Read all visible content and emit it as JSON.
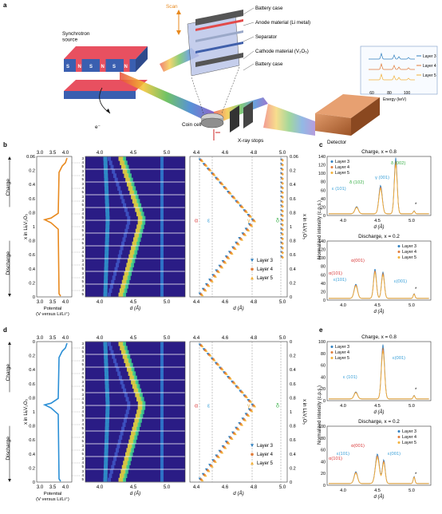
{
  "panel_labels": {
    "a": "a",
    "b": "b",
    "c": "c",
    "d": "d",
    "e": "e"
  },
  "panel_a": {
    "synchrotron_label": "Synchrotron\nsource",
    "scan_label": "Scan",
    "electron_label": "e⁻",
    "coin_cell_label": "Coin cell",
    "xray_stops_label": "X-ray stops",
    "detector_label": "Detector",
    "magnet_letters": [
      "S",
      "N",
      "S",
      "N",
      "S",
      "N"
    ],
    "cell_parts": [
      "Battery case",
      "Anode material (Li metal)",
      "Separator",
      "Cathode material (V₂O₅)",
      "Battery case"
    ],
    "inset": {
      "layers": [
        "Layer 3",
        "Layer 4",
        "Layer 5"
      ],
      "ticks": [
        "60",
        "80",
        "100"
      ],
      "xlabel": "Energy (keV)"
    }
  },
  "colors": {
    "layer3": "#2f7fbf",
    "layer4": "#e07b39",
    "layer5": "#f2b13a",
    "charge_curve": "#e8891e",
    "charge_curve_d": "#2b8fd6",
    "alpha": "#d93a3a",
    "epsilon": "#3aa0d8",
    "gamma": "#e8b04a",
    "delta": "#3bb14a"
  },
  "rows": [
    {
      "id": "b",
      "potential_ticks": [
        "3.0",
        "3.5",
        "4.0"
      ],
      "potential_label": "Potential\n(V versus Li/Li⁺)",
      "xli_ticks": [
        "0.06",
        "0.2",
        "0.4",
        "0.6",
        "0.8",
        "1",
        "0.8",
        "0.6",
        "0.4",
        "0.2",
        "0"
      ],
      "xli_label": "x in LiₓV₂O₅",
      "charge_label": "Charge",
      "discharge_label": "Discharge",
      "layer_numbers": [
        "3",
        "4",
        "5"
      ],
      "d_ticks": [
        "4.0",
        "4.5",
        "5.0"
      ],
      "d_label": "d (Å)",
      "fit_d_ticks": [
        "4.4",
        "4.6",
        "4.8",
        "5.0"
      ],
      "fit_right_ticks": [
        "0.06",
        "0.2",
        "0.4",
        "0.6",
        "0.8",
        "1",
        "0.8",
        "0.6",
        "0.4",
        "0.2",
        "0"
      ],
      "phase_labels": [
        "α",
        "ε",
        "γ",
        "δ"
      ],
      "legend": [
        "Layer 3",
        "Layer 4",
        "Layer 5"
      ]
    },
    {
      "id": "d",
      "potential_ticks": [
        "3.0",
        "3.5",
        "4.0"
      ],
      "potential_label": "Potential\n(V versus Li/Li⁺)",
      "xli_ticks": [
        "0",
        "0.2",
        "0.4",
        "0.6",
        "0.8",
        "1",
        "0.8",
        "0.6",
        "0.4",
        "0.2",
        "0"
      ],
      "xli_label": "x in LiₓV₂O₅",
      "charge_label": "Charge",
      "discharge_label": "Discharge",
      "layer_numbers": [
        "3",
        "4",
        "5"
      ],
      "d_ticks": [
        "4.0",
        "4.5",
        "5.0"
      ],
      "d_label": "d (Å)",
      "fit_d_ticks": [
        "4.4",
        "4.6",
        "4.8",
        "5.0"
      ],
      "fit_right_ticks": [
        "0",
        "0.2",
        "0.4",
        "0.6",
        "0.8",
        "1",
        "0.8",
        "0.6",
        "0.4",
        "0.2",
        "0"
      ],
      "phase_labels": [
        "α",
        "ε",
        "γ",
        "δ"
      ],
      "legend": [
        "Layer 3",
        "Layer 4",
        "Layer 5"
      ]
    }
  ],
  "spectra": [
    {
      "id": "c",
      "top_title": "Charge, x = 0.8",
      "bottom_title": "Discharge, x = 0.2",
      "ylabel": "Normalized intensity (c.p.s.)",
      "xlabel": "d (Å)",
      "x_ticks": [
        "4.0",
        "4.5",
        "5.0"
      ],
      "top_y_ticks": [
        "0",
        "20",
        "40",
        "60",
        "80",
        "100",
        "120",
        "140"
      ],
      "bottom_y_ticks": [
        "0",
        "20",
        "40",
        "60",
        "80",
        "100",
        "120",
        "140"
      ],
      "legend": [
        "Layer 3",
        "Layer 4",
        "Layer 5"
      ],
      "top_peaks": [
        "ε (101)",
        "δ (102)",
        "γ (001)",
        "δ (002)"
      ],
      "bottom_peaks": [
        "α(001)",
        "α(101)",
        "ε(101)",
        "ε(001)"
      ],
      "star": "*"
    },
    {
      "id": "e",
      "top_title": "Charge, x = 0.8",
      "bottom_title": "Discharge, x = 0.2",
      "ylabel": "Normalized intensity (c.p.s.)",
      "xlabel": "d (Å)",
      "x_ticks": [
        "4.0",
        "4.5",
        "5.0"
      ],
      "top_y_ticks": [
        "0",
        "20",
        "40",
        "60",
        "80",
        "100"
      ],
      "bottom_y_ticks": [
        "0",
        "20",
        "40",
        "60",
        "80",
        "100"
      ],
      "legend": [
        "Layer 3",
        "Layer 4",
        "Layer 5"
      ],
      "top_peaks": [
        "ε (101)",
        "ε(001)"
      ],
      "bottom_peaks": [
        "α(001)",
        "α(101)",
        "ε(101)",
        "ε(001)"
      ],
      "star": "*"
    }
  ]
}
